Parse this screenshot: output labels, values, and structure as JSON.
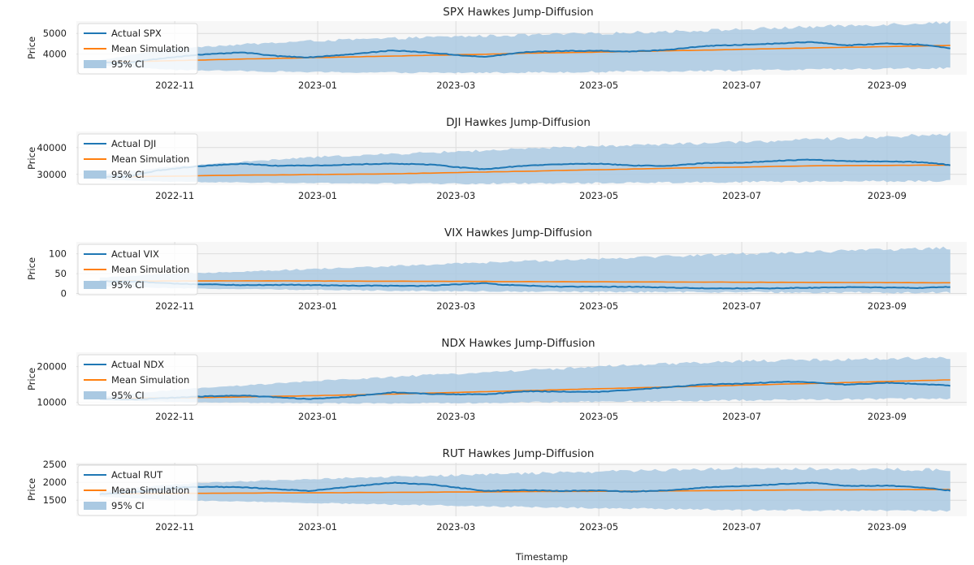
{
  "figure": {
    "xlabel": "Timestamp"
  },
  "chart_data": [
    {
      "type": "line",
      "title": "SPX Hawkes Jump-Diffusion",
      "ylabel": "Price",
      "ylim": [
        3000,
        5600
      ],
      "yticks": [
        4000,
        5000
      ],
      "xlim": [
        "2022-09-20",
        "2023-10-05"
      ],
      "xticks": [
        "2022-11",
        "2023-01",
        "2023-03",
        "2023-05",
        "2023-07",
        "2023-09"
      ],
      "legend": [
        "Actual SPX",
        "Mean Simulation",
        "95% CI"
      ],
      "legend_position": "upper-left",
      "grid": true,
      "colors": {
        "actual": "#1f77b4",
        "mean": "#ff7f0e",
        "ci": "#aac9e2"
      },
      "series": [
        {
          "name": "Actual SPX",
          "x": [
            "2022-09-30",
            "2022-10-12",
            "2022-10-20",
            "2022-11-01",
            "2022-11-10",
            "2022-11-30",
            "2022-12-15",
            "2022-12-28",
            "2023-01-15",
            "2023-02-02",
            "2023-02-15",
            "2023-03-01",
            "2023-03-13",
            "2023-03-31",
            "2023-04-15",
            "2023-05-01",
            "2023-05-15",
            "2023-06-01",
            "2023-06-15",
            "2023-07-01",
            "2023-07-15",
            "2023-07-31",
            "2023-08-15",
            "2023-09-01",
            "2023-09-15",
            "2023-09-28"
          ],
          "values": [
            3600,
            3580,
            3700,
            3860,
            3960,
            4080,
            3900,
            3840,
            3990,
            4180,
            4090,
            3960,
            3860,
            4100,
            4150,
            4160,
            4120,
            4220,
            4390,
            4450,
            4510,
            4590,
            4420,
            4520,
            4460,
            4290
          ]
        },
        {
          "name": "Mean Simulation",
          "x": [
            "2022-09-30",
            "2022-12-01",
            "2023-02-01",
            "2023-04-01",
            "2023-06-01",
            "2023-08-01",
            "2023-09-28"
          ],
          "values": [
            3600,
            3760,
            3900,
            4040,
            4160,
            4300,
            4420
          ]
        },
        {
          "name": "95% CI",
          "x": [
            "2022-09-30",
            "2022-11-01",
            "2023-01-01",
            "2023-03-01",
            "2023-05-01",
            "2023-07-01",
            "2023-09-28"
          ],
          "lower": [
            3450,
            3230,
            3120,
            3090,
            3140,
            3210,
            3320
          ],
          "upper": [
            3700,
            4300,
            4650,
            4850,
            5000,
            5200,
            5550
          ]
        }
      ]
    },
    {
      "type": "line",
      "title": "DJI Hawkes Jump-Diffusion",
      "ylabel": "Price",
      "ylim": [
        26000,
        46000
      ],
      "yticks": [
        30000,
        40000
      ],
      "xlim": [
        "2022-09-20",
        "2023-10-05"
      ],
      "xticks": [
        "2022-11",
        "2023-01",
        "2023-03",
        "2023-05",
        "2023-07",
        "2023-09"
      ],
      "legend": [
        "Actual DJI",
        "Mean Simulation",
        "95% CI"
      ],
      "legend_position": "upper-left",
      "grid": true,
      "colors": {
        "actual": "#1f77b4",
        "mean": "#ff7f0e",
        "ci": "#aac9e2"
      },
      "series": [
        {
          "name": "Actual DJI",
          "x": [
            "2022-09-30",
            "2022-10-12",
            "2022-10-25",
            "2022-11-10",
            "2022-11-30",
            "2022-12-15",
            "2023-01-05",
            "2023-01-20",
            "2023-02-02",
            "2023-02-20",
            "2023-03-01",
            "2023-03-13",
            "2023-03-31",
            "2023-04-15",
            "2023-05-01",
            "2023-05-15",
            "2023-06-01",
            "2023-06-15",
            "2023-07-01",
            "2023-07-15",
            "2023-07-31",
            "2023-08-15",
            "2023-09-01",
            "2023-09-15",
            "2023-09-28"
          ],
          "values": [
            29000,
            29200,
            31500,
            33000,
            34000,
            33200,
            33400,
            33800,
            34000,
            33600,
            32700,
            31900,
            33300,
            33800,
            34000,
            33300,
            33200,
            34200,
            34400,
            35000,
            35500,
            34900,
            34800,
            34600,
            33500
          ]
        },
        {
          "name": "Mean Simulation",
          "x": [
            "2022-09-30",
            "2022-12-01",
            "2023-02-01",
            "2023-04-01",
            "2023-06-01",
            "2023-08-01",
            "2023-09-28"
          ],
          "values": [
            29000,
            29700,
            30200,
            31200,
            32300,
            33200,
            33500
          ]
        },
        {
          "name": "95% CI",
          "x": [
            "2022-09-30",
            "2022-11-01",
            "2023-01-01",
            "2023-03-01",
            "2023-05-01",
            "2023-07-01",
            "2023-09-28"
          ],
          "lower": [
            28000,
            27200,
            26700,
            26500,
            26800,
            27200,
            27500
          ],
          "upper": [
            30000,
            33000,
            36500,
            38500,
            40500,
            42000,
            45000
          ]
        }
      ]
    },
    {
      "type": "line",
      "title": "VIX Hawkes Jump-Diffusion",
      "ylabel": "Price",
      "ylim": [
        -5,
        130
      ],
      "yticks": [
        0,
        50,
        100
      ],
      "xlim": [
        "2022-09-20",
        "2023-10-05"
      ],
      "xticks": [
        "2022-11",
        "2023-01",
        "2023-03",
        "2023-05",
        "2023-07",
        "2023-09"
      ],
      "legend": [
        "Actual VIX",
        "Mean Simulation",
        "95% CI"
      ],
      "legend_position": "upper-left",
      "grid": true,
      "colors": {
        "actual": "#1f77b4",
        "mean": "#ff7f0e",
        "ci": "#aac9e2"
      },
      "series": [
        {
          "name": "Actual VIX",
          "x": [
            "2022-09-30",
            "2022-10-15",
            "2022-11-01",
            "2022-11-30",
            "2022-12-20",
            "2023-01-15",
            "2023-02-15",
            "2023-03-13",
            "2023-03-20",
            "2023-04-15",
            "2023-05-15",
            "2023-06-15",
            "2023-07-15",
            "2023-08-15",
            "2023-09-15",
            "2023-09-28"
          ],
          "values": [
            31,
            30,
            25,
            21,
            22,
            20,
            19,
            26,
            22,
            17,
            17,
            13,
            13,
            16,
            14,
            17
          ]
        },
        {
          "name": "Mean Simulation",
          "x": [
            "2022-09-30",
            "2022-12-01",
            "2023-02-01",
            "2023-04-01",
            "2023-06-01",
            "2023-08-01",
            "2023-09-28"
          ],
          "values": [
            31,
            32,
            31,
            30,
            29,
            28,
            27
          ]
        },
        {
          "name": "95% CI",
          "x": [
            "2022-09-30",
            "2022-11-01",
            "2023-01-01",
            "2023-03-01",
            "2023-05-01",
            "2023-07-01",
            "2023-09-28"
          ],
          "lower": [
            18,
            13,
            9,
            6,
            4,
            3,
            2
          ],
          "upper": [
            40,
            50,
            62,
            75,
            88,
            100,
            115
          ]
        }
      ]
    },
    {
      "type": "line",
      "title": "NDX Hawkes Jump-Diffusion",
      "ylabel": "Price",
      "ylim": [
        9000,
        24000
      ],
      "yticks": [
        10000,
        20000
      ],
      "xlim": [
        "2022-09-20",
        "2023-10-05"
      ],
      "xticks": [
        "2022-11",
        "2023-01",
        "2023-03",
        "2023-05",
        "2023-07",
        "2023-09"
      ],
      "legend": [
        "Actual NDX",
        "Mean Simulation",
        "95% CI"
      ],
      "legend_position": "upper-left",
      "grid": true,
      "colors": {
        "actual": "#1f77b4",
        "mean": "#ff7f0e",
        "ci": "#aac9e2"
      },
      "series": [
        {
          "name": "Actual NDX",
          "x": [
            "2022-09-30",
            "2022-10-15",
            "2022-11-01",
            "2022-11-15",
            "2022-12-01",
            "2022-12-28",
            "2023-01-15",
            "2023-02-02",
            "2023-02-20",
            "2023-03-13",
            "2023-03-31",
            "2023-04-15",
            "2023-05-01",
            "2023-05-15",
            "2023-06-01",
            "2023-06-15",
            "2023-07-01",
            "2023-07-20",
            "2023-08-01",
            "2023-08-15",
            "2023-09-01",
            "2023-09-15",
            "2023-09-28"
          ],
          "values": [
            11000,
            10800,
            11300,
            11700,
            11900,
            10900,
            11600,
            12800,
            12300,
            12200,
            13100,
            13000,
            12900,
            13500,
            14300,
            15000,
            15200,
            15800,
            15500,
            14900,
            15500,
            15100,
            14700
          ]
        },
        {
          "name": "Mean Simulation",
          "x": [
            "2022-09-30",
            "2022-12-01",
            "2023-02-01",
            "2023-04-01",
            "2023-06-01",
            "2023-08-01",
            "2023-09-28"
          ],
          "values": [
            11000,
            11500,
            12300,
            13300,
            14300,
            15300,
            16300
          ]
        },
        {
          "name": "95% CI",
          "x": [
            "2022-09-30",
            "2022-11-01",
            "2023-01-01",
            "2023-03-01",
            "2023-05-01",
            "2023-07-01",
            "2023-09-28"
          ],
          "lower": [
            10600,
            10100,
            9700,
            9800,
            10200,
            10600,
            11100
          ],
          "upper": [
            11500,
            13500,
            16000,
            18000,
            20000,
            21500,
            22500
          ]
        }
      ]
    },
    {
      "type": "line",
      "title": "RUT Hawkes Jump-Diffusion",
      "ylabel": "Price",
      "ylim": [
        1050,
        2550
      ],
      "yticks": [
        1500,
        2000,
        2500
      ],
      "xlim": [
        "2022-09-20",
        "2023-10-05"
      ],
      "xticks": [
        "2022-11",
        "2023-01",
        "2023-03",
        "2023-05",
        "2023-07",
        "2023-09"
      ],
      "legend": [
        "Actual RUT",
        "Mean Simulation",
        "95% CI"
      ],
      "legend_position": "upper-left",
      "grid": true,
      "colors": {
        "actual": "#1f77b4",
        "mean": "#ff7f0e",
        "ci": "#aac9e2"
      },
      "series": [
        {
          "name": "Actual RUT",
          "x": [
            "2022-09-30",
            "2022-10-15",
            "2022-11-01",
            "2022-11-15",
            "2022-12-01",
            "2022-12-28",
            "2023-01-15",
            "2023-02-02",
            "2023-02-20",
            "2023-03-13",
            "2023-03-31",
            "2023-04-15",
            "2023-05-01",
            "2023-05-15",
            "2023-06-01",
            "2023-06-15",
            "2023-07-01",
            "2023-07-20",
            "2023-08-01",
            "2023-08-15",
            "2023-09-01",
            "2023-09-15",
            "2023-09-28"
          ],
          "values": [
            1670,
            1730,
            1850,
            1880,
            1860,
            1760,
            1880,
            1990,
            1930,
            1760,
            1780,
            1760,
            1770,
            1740,
            1780,
            1860,
            1890,
            1960,
            1990,
            1900,
            1910,
            1860,
            1770
          ]
        },
        {
          "name": "Mean Simulation",
          "x": [
            "2022-09-30",
            "2022-12-01",
            "2023-02-01",
            "2023-04-01",
            "2023-06-01",
            "2023-08-01",
            "2023-09-28"
          ],
          "values": [
            1680,
            1700,
            1720,
            1740,
            1760,
            1790,
            1800
          ]
        },
        {
          "name": "95% CI",
          "x": [
            "2022-09-30",
            "2022-11-01",
            "2023-01-01",
            "2023-03-01",
            "2023-05-01",
            "2023-07-01",
            "2023-09-28"
          ],
          "lower": [
            1600,
            1500,
            1420,
            1350,
            1280,
            1230,
            1200
          ],
          "upper": [
            1760,
            1950,
            2100,
            2200,
            2300,
            2400,
            2350
          ]
        }
      ]
    }
  ]
}
